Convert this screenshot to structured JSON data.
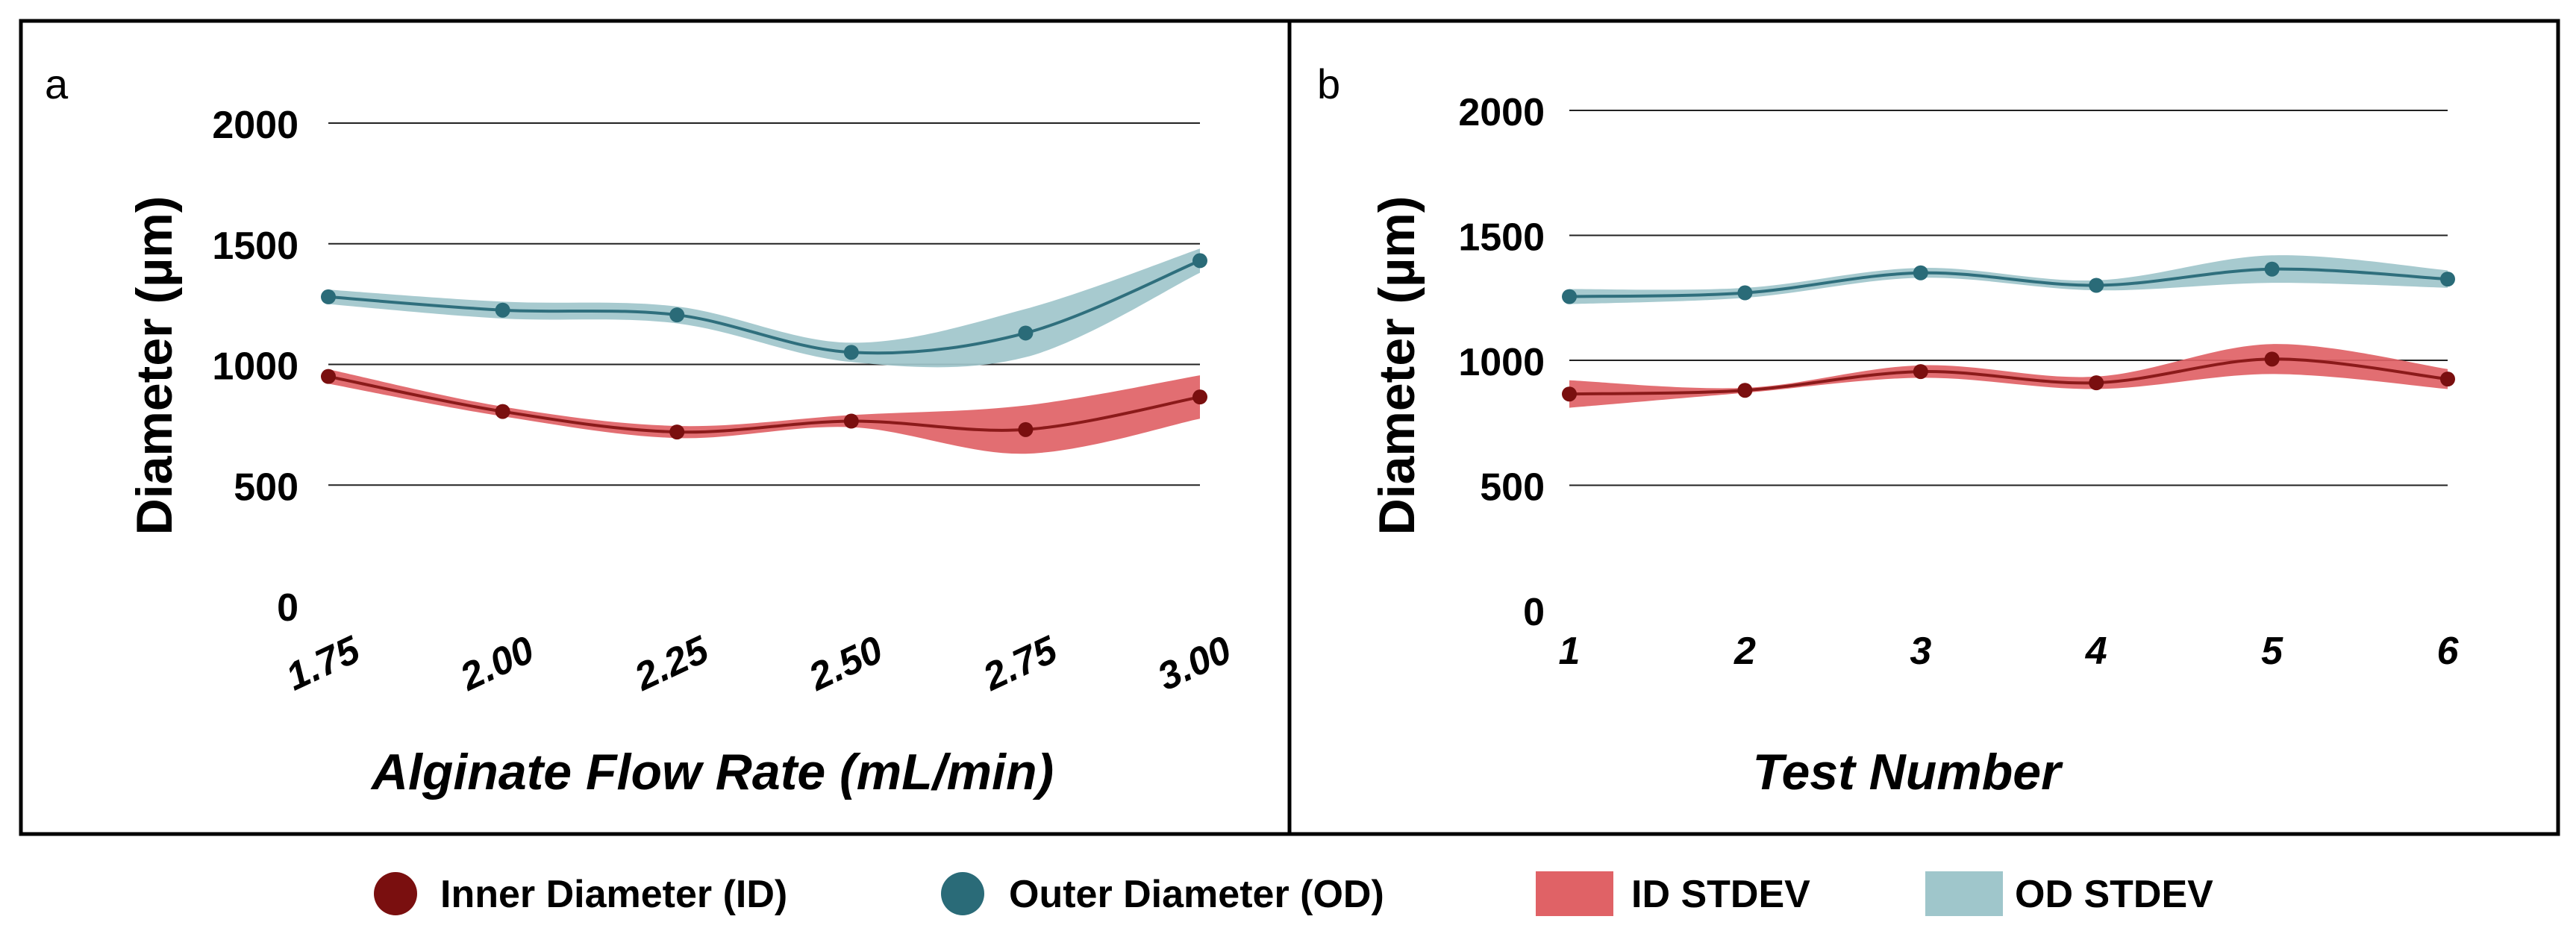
{
  "colors": {
    "id_line": "#8b1a1a",
    "id_point": "#7a0f0f",
    "id_band": "#e06266",
    "od_line": "#2f6f7d",
    "od_point": "#2a6b78",
    "od_band": "#9fc6cb",
    "grid": "#222222",
    "frame": "#000000"
  },
  "chart_data": [
    {
      "type": "line",
      "panel_label": "a",
      "title": "",
      "xlabel": "Alginate Flow Rate (mL/min)",
      "ylabel": "Diameter (µm)",
      "categories": [
        "1.75",
        "2.00",
        "2.25",
        "2.50",
        "2.75",
        "3.00"
      ],
      "ylim": [
        0,
        2000
      ],
      "yticks": [
        "0",
        "500",
        "1000",
        "1500",
        "2000"
      ],
      "grid": true,
      "series": [
        {
          "name": "Inner Diameter (ID)",
          "values": [
            950,
            805,
            720,
            765,
            730,
            865
          ],
          "stdev": [
            30,
            20,
            25,
            25,
            100,
            90
          ]
        },
        {
          "name": "Outer Diameter (OD)",
          "values": [
            1280,
            1225,
            1205,
            1050,
            1130,
            1430
          ],
          "stdev": [
            30,
            35,
            35,
            40,
            100,
            50
          ]
        }
      ]
    },
    {
      "type": "line",
      "panel_label": "b",
      "title": "",
      "xlabel": "Test Number",
      "ylabel": "Diameter (µm)",
      "categories": [
        "1",
        "2",
        "3",
        "4",
        "5",
        "6"
      ],
      "ylim": [
        0,
        2000
      ],
      "yticks": [
        "0",
        "500",
        "1000",
        "1500",
        "2000"
      ],
      "grid": true,
      "series": [
        {
          "name": "Inner Diameter (ID)",
          "values": [
            865,
            880,
            955,
            910,
            1005,
            925
          ],
          "stdev": [
            55,
            10,
            25,
            25,
            60,
            40
          ]
        },
        {
          "name": "Outer Diameter (OD)",
          "values": [
            1255,
            1270,
            1350,
            1300,
            1365,
            1325
          ],
          "stdev": [
            30,
            20,
            20,
            20,
            55,
            35
          ]
        }
      ]
    }
  ],
  "legend": {
    "placement": "bottom",
    "items": [
      {
        "label": "Inner Diameter (ID)",
        "kind": "dot",
        "color": "#7a0f0f"
      },
      {
        "label": "Outer Diameter (OD)",
        "kind": "dot",
        "color": "#2a6b78"
      },
      {
        "label": "ID STDEV",
        "kind": "box",
        "color": "#e06266"
      },
      {
        "label": "OD STDEV",
        "kind": "box",
        "color": "#9fc6cb"
      }
    ]
  }
}
